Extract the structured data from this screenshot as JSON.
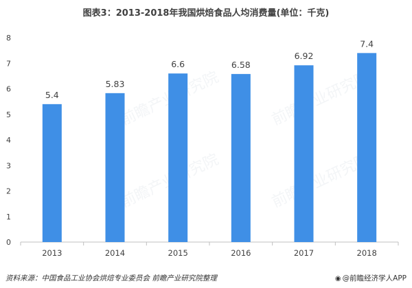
{
  "chart_data": {
    "type": "bar",
    "title": "图表3：2013-2018年我国烘焙食品人均消费量(单位：千克)",
    "categories": [
      "2013",
      "2014",
      "2015",
      "2016",
      "2017",
      "2018"
    ],
    "values": [
      5.4,
      5.83,
      6.6,
      6.58,
      6.92,
      7.4
    ],
    "data_labels": [
      "5.4",
      "5.83",
      "6.6",
      "6.58",
      "6.92",
      "7.4"
    ],
    "y_ticks": [
      "0",
      "1",
      "2",
      "3",
      "4",
      "5",
      "6",
      "7",
      "8"
    ],
    "ylim": [
      0,
      8
    ],
    "grid": false,
    "legend": "none",
    "bar_color": "#3F8FE6"
  },
  "footer": {
    "source": "资料来源：中国食品工业协会烘焙专业委员会 前瞻产业研究院整理",
    "brand": "@前瞻经济学人APP",
    "brand_icon": "chart-logo-icon"
  },
  "watermark": {
    "text": "前瞻产业研究院"
  }
}
